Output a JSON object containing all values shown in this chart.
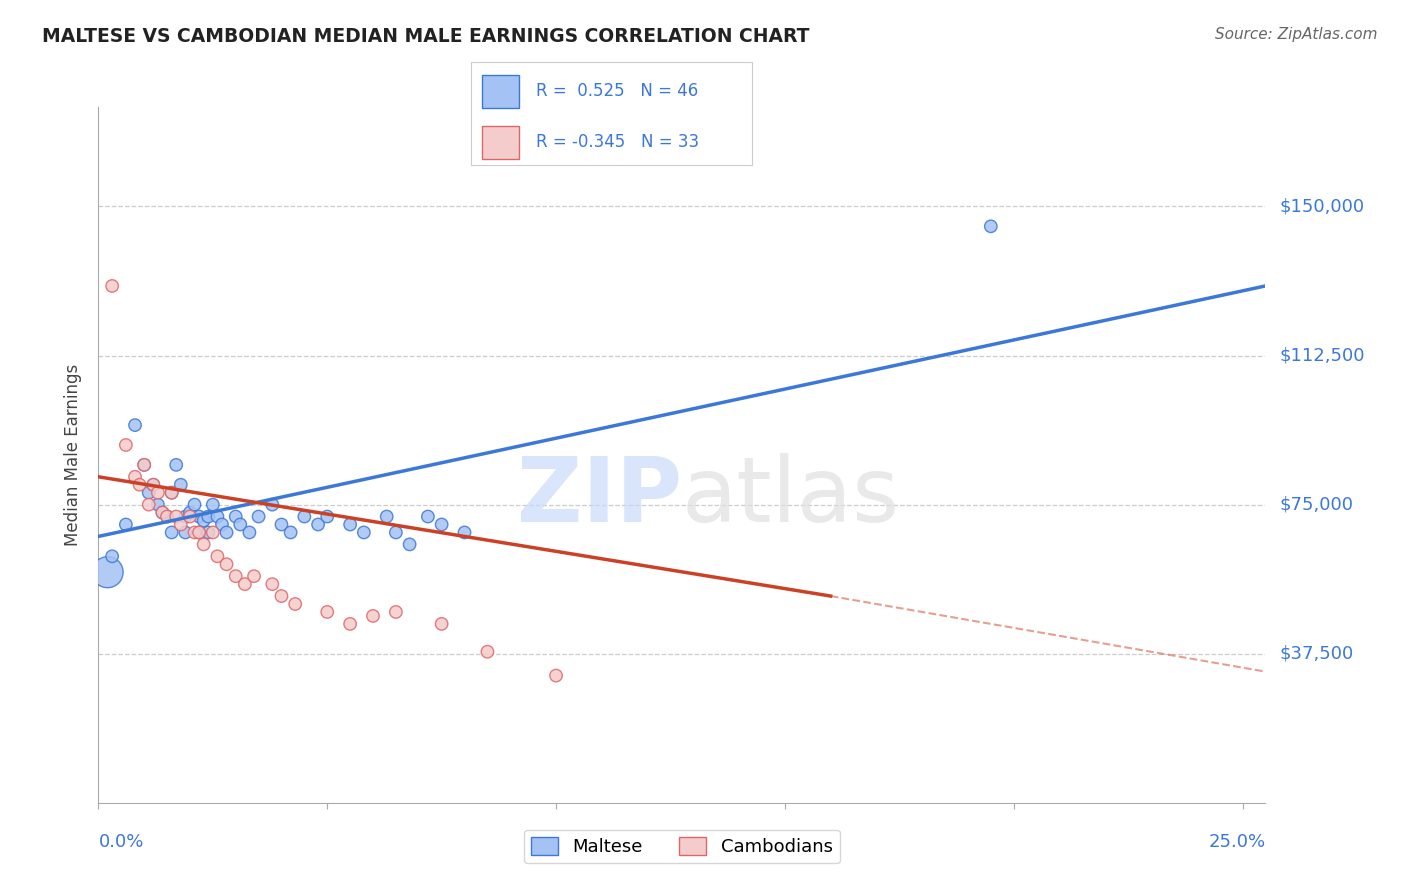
{
  "title": "MALTESE VS CAMBODIAN MEDIAN MALE EARNINGS CORRELATION CHART",
  "source": "Source: ZipAtlas.com",
  "ylabel": "Median Male Earnings",
  "y_ticks": [
    37500,
    75000,
    112500,
    150000
  ],
  "y_tick_labels": [
    "$37,500",
    "$75,000",
    "$112,500",
    "$150,000"
  ],
  "y_min": 0,
  "y_max": 175000,
  "x_min": 0.0,
  "x_max": 0.255,
  "blue_R": "0.525",
  "blue_N": "46",
  "pink_R": "-0.345",
  "pink_N": "33",
  "blue_face_color": "#a4c2f4",
  "pink_face_color": "#f4cccc",
  "blue_edge_color": "#3c78d8",
  "pink_edge_color": "#e06666",
  "blue_line_color": "#3c78d8",
  "pink_line_color": "#cc4125",
  "watermark_text": "ZIPatlas",
  "blue_scatter_x": [
    0.002,
    0.003,
    0.006,
    0.008,
    0.01,
    0.011,
    0.012,
    0.013,
    0.014,
    0.015,
    0.016,
    0.016,
    0.017,
    0.018,
    0.019,
    0.019,
    0.02,
    0.021,
    0.022,
    0.022,
    0.023,
    0.024,
    0.024,
    0.025,
    0.026,
    0.027,
    0.028,
    0.03,
    0.031,
    0.033,
    0.035,
    0.038,
    0.04,
    0.042,
    0.045,
    0.048,
    0.05,
    0.055,
    0.058,
    0.063,
    0.065,
    0.068,
    0.072,
    0.075,
    0.08,
    0.195
  ],
  "blue_scatter_y": [
    58000,
    62000,
    70000,
    95000,
    85000,
    78000,
    80000,
    75000,
    73000,
    72000,
    78000,
    68000,
    85000,
    80000,
    72000,
    68000,
    73000,
    75000,
    72000,
    68000,
    71000,
    72000,
    68000,
    75000,
    72000,
    70000,
    68000,
    72000,
    70000,
    68000,
    72000,
    75000,
    70000,
    68000,
    72000,
    70000,
    72000,
    70000,
    68000,
    72000,
    68000,
    65000,
    72000,
    70000,
    68000,
    145000
  ],
  "blue_scatter_sizes": [
    500,
    80,
    80,
    80,
    80,
    80,
    80,
    80,
    80,
    80,
    80,
    80,
    80,
    80,
    80,
    80,
    80,
    80,
    80,
    80,
    80,
    80,
    80,
    80,
    80,
    80,
    80,
    80,
    80,
    80,
    80,
    80,
    80,
    80,
    80,
    80,
    80,
    80,
    80,
    80,
    80,
    80,
    80,
    80,
    80,
    80
  ],
  "pink_scatter_x": [
    0.003,
    0.006,
    0.008,
    0.009,
    0.01,
    0.011,
    0.012,
    0.013,
    0.014,
    0.015,
    0.016,
    0.017,
    0.018,
    0.02,
    0.021,
    0.022,
    0.023,
    0.025,
    0.026,
    0.028,
    0.03,
    0.032,
    0.034,
    0.038,
    0.04,
    0.043,
    0.05,
    0.055,
    0.06,
    0.065,
    0.075,
    0.085,
    0.1
  ],
  "pink_scatter_y": [
    130000,
    90000,
    82000,
    80000,
    85000,
    75000,
    80000,
    78000,
    73000,
    72000,
    78000,
    72000,
    70000,
    72000,
    68000,
    68000,
    65000,
    68000,
    62000,
    60000,
    57000,
    55000,
    57000,
    55000,
    52000,
    50000,
    48000,
    45000,
    47000,
    48000,
    45000,
    38000,
    32000
  ],
  "pink_scatter_sizes": [
    80,
    80,
    80,
    80,
    80,
    80,
    80,
    80,
    80,
    80,
    80,
    80,
    80,
    80,
    80,
    80,
    80,
    80,
    80,
    80,
    80,
    80,
    80,
    80,
    80,
    80,
    80,
    80,
    80,
    80,
    80,
    80,
    80
  ],
  "blue_line_x0": 0.0,
  "blue_line_y0": 67000,
  "blue_line_x1": 0.255,
  "blue_line_y1": 130000,
  "pink_line_solid_x0": 0.0,
  "pink_line_solid_y0": 82000,
  "pink_line_solid_x1": 0.16,
  "pink_line_solid_y1": 52000,
  "pink_line_dashed_x0": 0.16,
  "pink_line_dashed_y0": 52000,
  "pink_line_dashed_x1": 0.255,
  "pink_line_dashed_y1": 33000,
  "legend_blue_label": "Maltese",
  "legend_pink_label": "Cambodians",
  "legend_R_label": "R = ",
  "legend_N_label": "N = "
}
